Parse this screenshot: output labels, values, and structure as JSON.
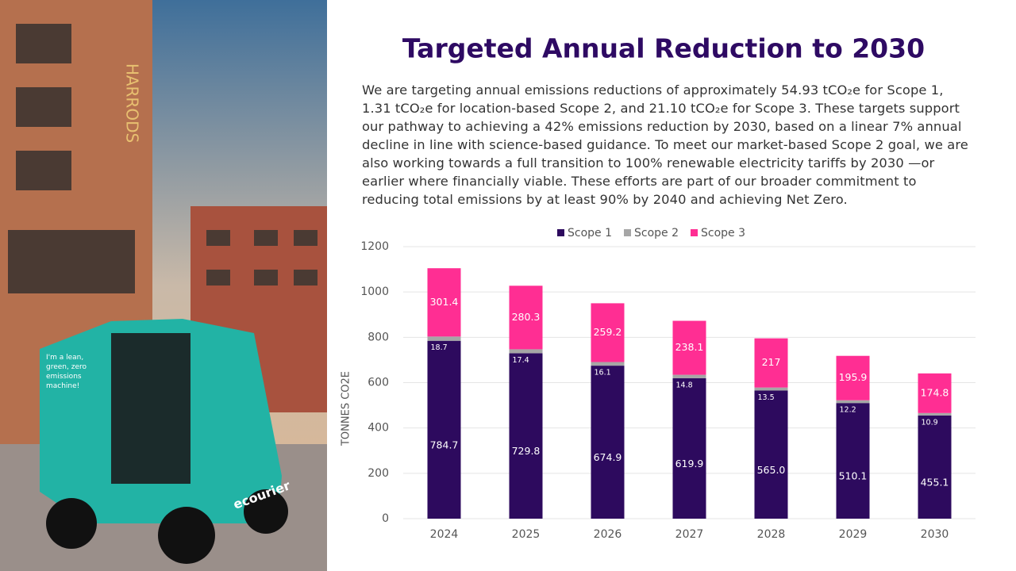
{
  "photo": {
    "signs": [
      "HARRODS",
      "I'm a lean, green, zero emissions machine!",
      "ecourier"
    ]
  },
  "chart_data": {
    "type": "bar",
    "stacked": true,
    "title": "Targeted Annual Reduction to 2030",
    "subtitle": "We are targeting annual emissions reductions of approximately 54.93 tCO₂e for Scope 1, 1.31 tCO₂e for location-based Scope 2, and 21.10 tCO₂e for Scope 3. These targets support our pathway to achieving a 42% emissions reduction by 2030, based on a linear 7% annual decline in line with science-based guidance. To meet our market-based Scope 2 goal, we are also working towards a full transition to 100% renewable electricity tariffs by 2030 —or earlier where financially viable. These efforts are part of our broader commitment to reducing total emissions by at least 90% by 2040 and achieving Net Zero.",
    "y_label": "TONNES CO2E",
    "categories": [
      "2024",
      "2025",
      "2026",
      "2027",
      "2028",
      "2029",
      "2030"
    ],
    "series": [
      {
        "name": "Scope 1",
        "color": "#2d0a5e",
        "values": [
          784.7,
          729.8,
          674.9,
          619.9,
          565.0,
          510.1,
          455.1
        ],
        "value_labels": [
          "784.7",
          "729.8",
          "674.9",
          "619.9",
          "565.0",
          "510.1",
          "455.1"
        ]
      },
      {
        "name": "Scope 2",
        "color": "#a6a6a6",
        "values": [
          18.7,
          17.4,
          16.1,
          14.8,
          13.5,
          12.2,
          10.9
        ]
      },
      {
        "name": "Scope 3",
        "color": "#ff2e93",
        "values": [
          301.4,
          280.3,
          259.2,
          238.1,
          217.0,
          195.9,
          174.8
        ]
      }
    ],
    "ylim": [
      0,
      1200
    ],
    "yticks": [
      0,
      200,
      400,
      600,
      800,
      1000,
      1200
    ],
    "grid": true,
    "legend": "top"
  }
}
